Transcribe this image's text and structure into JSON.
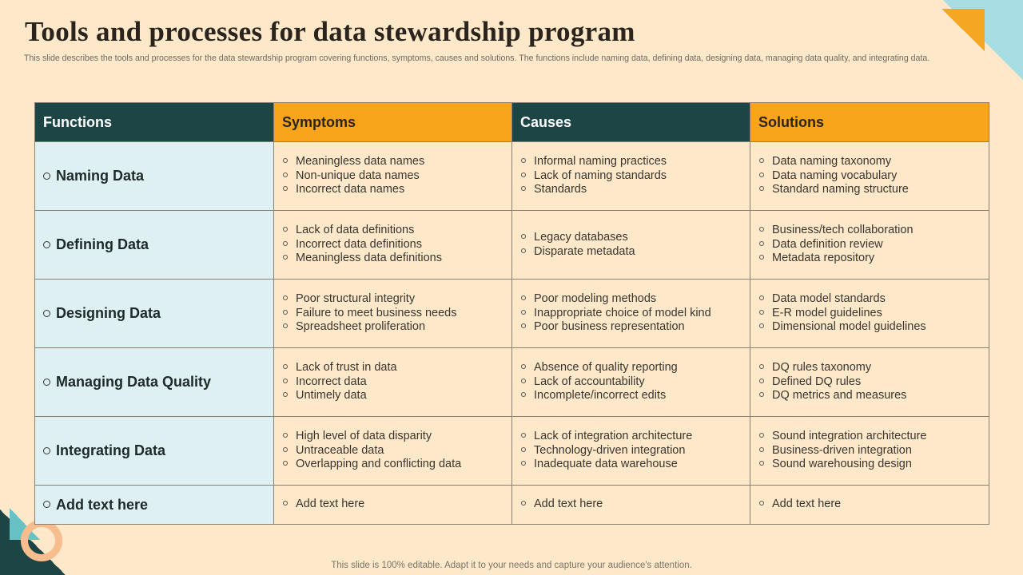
{
  "slide": {
    "title": "Tools and processes for data stewardship program",
    "subtitle": "This slide describes the tools and processes for the data stewardship program covering functions, symptoms, causes and solutions. The functions include naming data, defining data, designing data, managing data quality, and integrating data.",
    "footer": "This slide is 100% editable. Adapt it to your needs and capture your audience's attention."
  },
  "colors": {
    "background": "#fde9c9",
    "header_dark": "#1e4545",
    "header_orange": "#f8a51c",
    "function_cell": "#dff0f2",
    "accent_blue": "#a9dde4",
    "accent_teal": "#67c2c6",
    "accent_peach": "#f7bd8e"
  },
  "table": {
    "headers": [
      "Functions",
      "Symptoms",
      "Causes",
      "Solutions"
    ],
    "rows": [
      {
        "function": "Naming Data",
        "symptoms": [
          "Meaningless data names",
          "Non-unique data names",
          "Incorrect data names"
        ],
        "causes": [
          "Informal naming practices",
          "Lack of naming standards",
          "Standards"
        ],
        "solutions": [
          "Data naming taxonomy",
          "Data naming vocabulary",
          "Standard naming structure"
        ]
      },
      {
        "function": "Defining Data",
        "symptoms": [
          "Lack of data definitions",
          "Incorrect data definitions",
          "Meaningless data definitions"
        ],
        "causes": [
          "Legacy databases",
          "Disparate metadata"
        ],
        "solutions": [
          "Business/tech collaboration",
          "Data definition review",
          "Metadata repository"
        ]
      },
      {
        "function": "Designing Data",
        "symptoms": [
          "Poor structural integrity",
          "Failure to meet business needs",
          "Spreadsheet proliferation"
        ],
        "causes": [
          "Poor modeling methods",
          "Inappropriate choice of model kind",
          "Poor business representation"
        ],
        "solutions": [
          "Data model standards",
          "E-R model guidelines",
          "Dimensional model guidelines"
        ]
      },
      {
        "function": "Managing Data Quality",
        "symptoms": [
          "Lack of trust in data",
          "Incorrect data",
          "Untimely data"
        ],
        "causes": [
          "Absence of quality reporting",
          "Lack of accountability",
          "Incomplete/incorrect edits"
        ],
        "solutions": [
          "DQ rules taxonomy",
          "Defined DQ rules",
          "DQ metrics and measures"
        ]
      },
      {
        "function": "Integrating Data",
        "symptoms": [
          "High level of data disparity",
          "Untraceable data",
          "Overlapping and conflicting data"
        ],
        "causes": [
          "Lack of integration architecture",
          "Technology-driven integration",
          "Inadequate data warehouse"
        ],
        "solutions": [
          "Sound integration architecture",
          "Business-driven integration",
          "Sound warehousing design"
        ]
      },
      {
        "function": "Add text here",
        "symptoms": [
          "Add text here"
        ],
        "causes": [
          "Add text here"
        ],
        "solutions": [
          "Add text here"
        ]
      }
    ]
  }
}
